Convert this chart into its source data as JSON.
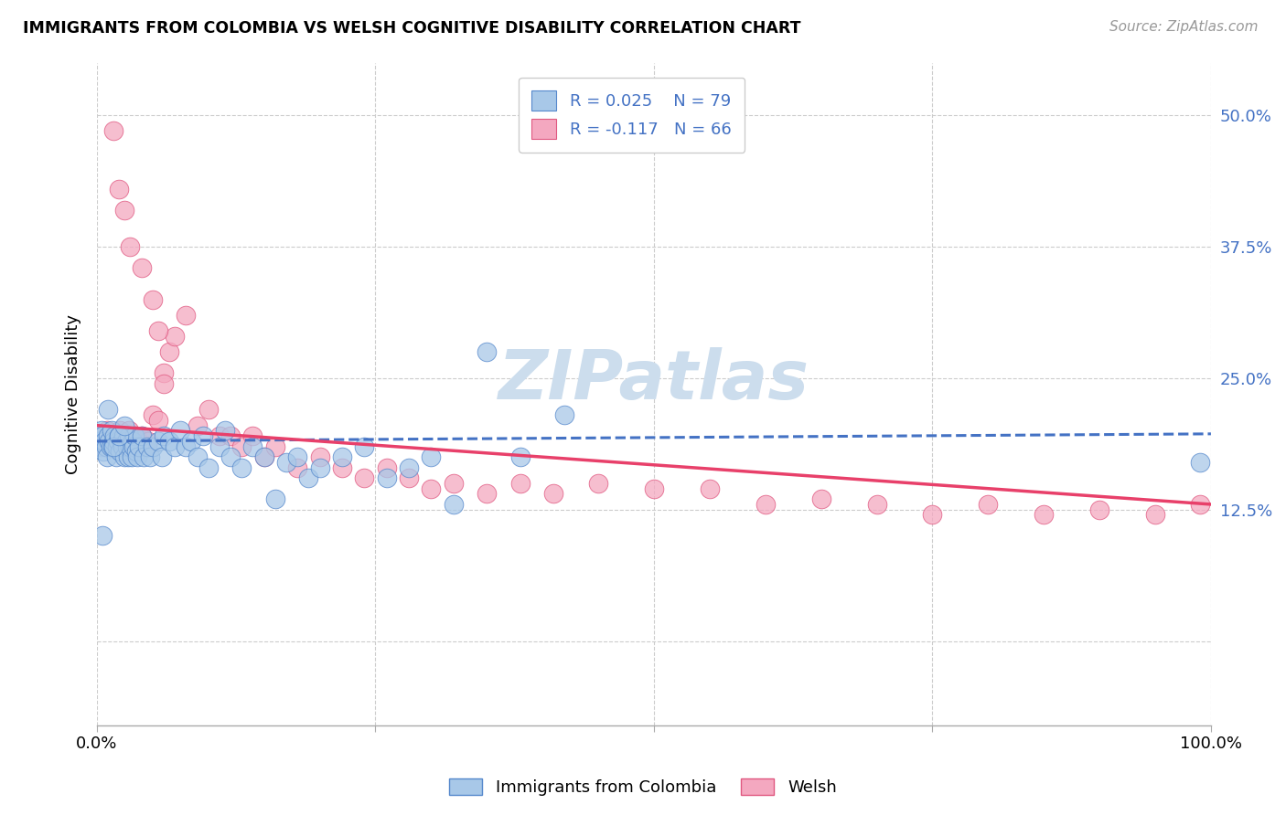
{
  "title": "IMMIGRANTS FROM COLOMBIA VS WELSH COGNITIVE DISABILITY CORRELATION CHART",
  "source": "Source: ZipAtlas.com",
  "ylabel": "Cognitive Disability",
  "yticks": [
    0.0,
    0.125,
    0.25,
    0.375,
    0.5
  ],
  "ytick_labels": [
    "",
    "12.5%",
    "25.0%",
    "37.5%",
    "50.0%"
  ],
  "xlim": [
    0.0,
    1.0
  ],
  "ylim": [
    -0.08,
    0.55
  ],
  "blue_R": 0.025,
  "blue_N": 79,
  "pink_R": -0.117,
  "pink_N": 66,
  "blue_color": "#a8c8e8",
  "pink_color": "#f4a8c0",
  "blue_edge_color": "#5588cc",
  "pink_edge_color": "#e05880",
  "blue_line_color": "#4472c4",
  "pink_line_color": "#e8406a",
  "watermark_color": "#ccdded",
  "background_color": "#ffffff",
  "grid_color": "#cccccc",
  "blue_scatter_x": [
    0.001,
    0.002,
    0.003,
    0.004,
    0.005,
    0.006,
    0.007,
    0.008,
    0.009,
    0.01,
    0.011,
    0.012,
    0.013,
    0.014,
    0.015,
    0.016,
    0.017,
    0.018,
    0.019,
    0.02,
    0.021,
    0.022,
    0.023,
    0.024,
    0.025,
    0.026,
    0.027,
    0.028,
    0.029,
    0.03,
    0.031,
    0.032,
    0.033,
    0.034,
    0.035,
    0.036,
    0.038,
    0.04,
    0.042,
    0.045,
    0.048,
    0.05,
    0.055,
    0.058,
    0.06,
    0.065,
    0.07,
    0.075,
    0.08,
    0.085,
    0.09,
    0.095,
    0.1,
    0.11,
    0.115,
    0.12,
    0.13,
    0.14,
    0.15,
    0.16,
    0.17,
    0.18,
    0.19,
    0.2,
    0.22,
    0.24,
    0.26,
    0.28,
    0.3,
    0.32,
    0.35,
    0.38,
    0.42,
    0.005,
    0.01,
    0.015,
    0.02,
    0.025,
    0.99
  ],
  "blue_scatter_y": [
    0.195,
    0.19,
    0.185,
    0.2,
    0.195,
    0.18,
    0.19,
    0.185,
    0.175,
    0.195,
    0.19,
    0.185,
    0.2,
    0.185,
    0.19,
    0.195,
    0.175,
    0.185,
    0.19,
    0.195,
    0.18,
    0.19,
    0.185,
    0.195,
    0.175,
    0.19,
    0.185,
    0.175,
    0.195,
    0.185,
    0.175,
    0.19,
    0.185,
    0.195,
    0.18,
    0.175,
    0.185,
    0.195,
    0.175,
    0.185,
    0.175,
    0.185,
    0.19,
    0.175,
    0.195,
    0.19,
    0.185,
    0.2,
    0.185,
    0.19,
    0.175,
    0.195,
    0.165,
    0.185,
    0.2,
    0.175,
    0.165,
    0.185,
    0.175,
    0.135,
    0.17,
    0.175,
    0.155,
    0.165,
    0.175,
    0.185,
    0.155,
    0.165,
    0.175,
    0.13,
    0.275,
    0.175,
    0.215,
    0.1,
    0.22,
    0.185,
    0.195,
    0.205,
    0.17
  ],
  "pink_scatter_x": [
    0.003,
    0.005,
    0.007,
    0.009,
    0.011,
    0.013,
    0.015,
    0.017,
    0.019,
    0.021,
    0.023,
    0.025,
    0.027,
    0.029,
    0.031,
    0.033,
    0.035,
    0.037,
    0.04,
    0.043,
    0.046,
    0.05,
    0.055,
    0.06,
    0.065,
    0.07,
    0.08,
    0.09,
    0.1,
    0.11,
    0.12,
    0.13,
    0.14,
    0.15,
    0.16,
    0.18,
    0.2,
    0.22,
    0.24,
    0.26,
    0.28,
    0.3,
    0.32,
    0.35,
    0.38,
    0.41,
    0.45,
    0.5,
    0.55,
    0.6,
    0.65,
    0.7,
    0.75,
    0.8,
    0.85,
    0.9,
    0.95,
    0.99,
    0.015,
    0.02,
    0.025,
    0.03,
    0.04,
    0.05,
    0.055,
    0.06
  ],
  "pink_scatter_y": [
    0.195,
    0.19,
    0.185,
    0.2,
    0.195,
    0.19,
    0.185,
    0.195,
    0.195,
    0.2,
    0.19,
    0.185,
    0.195,
    0.2,
    0.19,
    0.185,
    0.195,
    0.19,
    0.195,
    0.185,
    0.19,
    0.215,
    0.21,
    0.255,
    0.275,
    0.29,
    0.31,
    0.205,
    0.22,
    0.195,
    0.195,
    0.185,
    0.195,
    0.175,
    0.185,
    0.165,
    0.175,
    0.165,
    0.155,
    0.165,
    0.155,
    0.145,
    0.15,
    0.14,
    0.15,
    0.14,
    0.15,
    0.145,
    0.145,
    0.13,
    0.135,
    0.13,
    0.12,
    0.13,
    0.12,
    0.125,
    0.12,
    0.13,
    0.485,
    0.43,
    0.41,
    0.375,
    0.355,
    0.325,
    0.295,
    0.245
  ]
}
